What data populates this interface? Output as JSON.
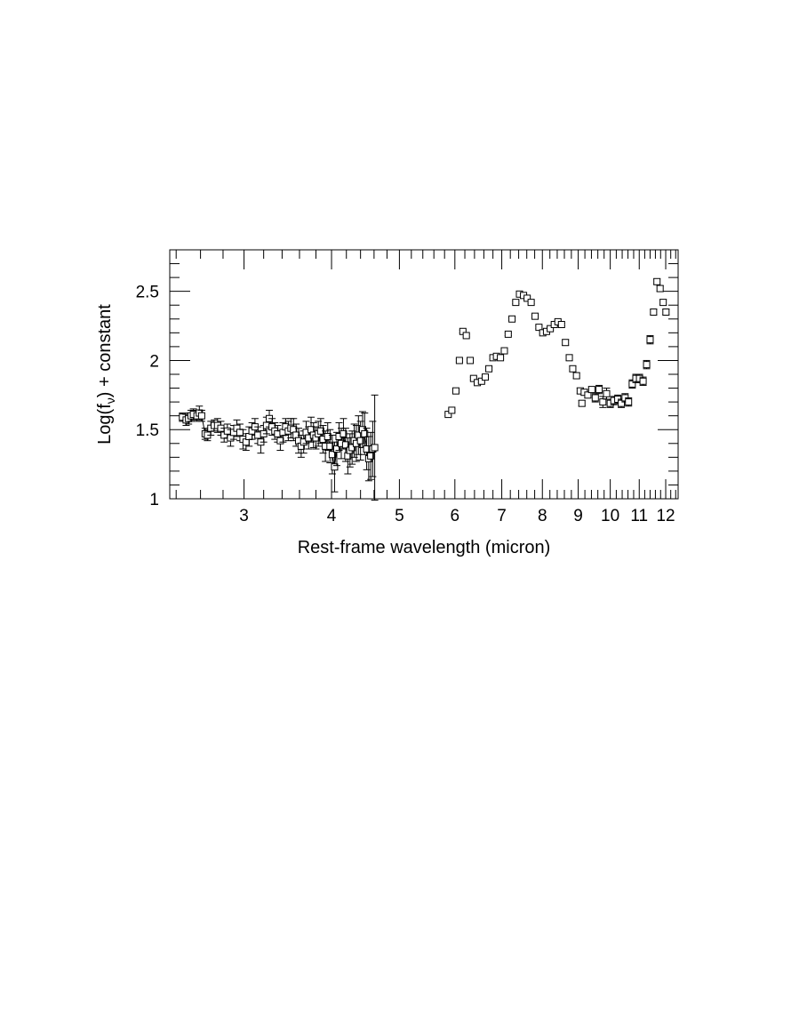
{
  "chart_data": {
    "type": "scatter",
    "xlabel": "Rest-frame wavelength (micron)",
    "ylabel_parts": {
      "pre": "Log(f",
      "sub": "ν",
      "post": ")  +  constant"
    },
    "x_scale": "log",
    "xlim": [
      2.35,
      12.5
    ],
    "ylim": [
      1.0,
      2.8
    ],
    "x_ticks": [
      {
        "value": 3,
        "label": "3"
      },
      {
        "value": 4,
        "label": "4"
      },
      {
        "value": 5,
        "label": "5"
      },
      {
        "value": 6,
        "label": "6"
      },
      {
        "value": 7,
        "label": "7"
      },
      {
        "value": 8,
        "label": "8"
      },
      {
        "value": 9,
        "label": "9"
      },
      {
        "value": 10,
        "label": "10"
      },
      {
        "value": 11,
        "label": "11"
      },
      {
        "value": 12,
        "label": "12"
      }
    ],
    "y_ticks": [
      {
        "value": 1,
        "label": "1"
      },
      {
        "value": 1.5,
        "label": "1.5"
      },
      {
        "value": 2,
        "label": "2"
      },
      {
        "value": 2.5,
        "label": "2.5"
      }
    ],
    "y_minor_step": 0.1,
    "grid": false,
    "marker": "open-square",
    "series": [
      {
        "connected": true,
        "points": [
          [
            2.45,
            1.59,
            0.03
          ],
          [
            2.48,
            1.57,
            0.04
          ],
          [
            2.5,
            1.58,
            0.04
          ],
          [
            2.52,
            1.6,
            0.04
          ],
          [
            2.54,
            1.61,
            0.04
          ],
          [
            2.57,
            1.6,
            0.04
          ],
          [
            2.59,
            1.62,
            0.05
          ],
          [
            2.61,
            1.6,
            0.04
          ],
          [
            2.64,
            1.47,
            0.04
          ],
          [
            2.66,
            1.46,
            0.04
          ],
          [
            2.69,
            1.51,
            0.05
          ],
          [
            2.72,
            1.53,
            0.04
          ],
          [
            2.75,
            1.53,
            0.05
          ],
          [
            2.78,
            1.51,
            0.05
          ],
          [
            2.81,
            1.46,
            0.05
          ],
          [
            2.84,
            1.49,
            0.05
          ],
          [
            2.87,
            1.44,
            0.06
          ],
          [
            2.9,
            1.48,
            0.05
          ],
          [
            2.93,
            1.51,
            0.06
          ],
          [
            2.96,
            1.48,
            0.06
          ],
          [
            2.99,
            1.43,
            0.07
          ],
          [
            3.02,
            1.41,
            0.06
          ],
          [
            3.05,
            1.45,
            0.07
          ],
          [
            3.08,
            1.49,
            0.06
          ],
          [
            3.11,
            1.52,
            0.06
          ],
          [
            3.14,
            1.46,
            0.06
          ],
          [
            3.17,
            1.41,
            0.08
          ],
          [
            3.2,
            1.47,
            0.06
          ],
          [
            3.23,
            1.53,
            0.06
          ],
          [
            3.26,
            1.58,
            0.06
          ],
          [
            3.29,
            1.52,
            0.06
          ],
          [
            3.32,
            1.49,
            0.06
          ],
          [
            3.35,
            1.47,
            0.06
          ],
          [
            3.38,
            1.42,
            0.07
          ],
          [
            3.41,
            1.48,
            0.07
          ],
          [
            3.44,
            1.52,
            0.06
          ],
          [
            3.47,
            1.49,
            0.07
          ],
          [
            3.5,
            1.51,
            0.07
          ],
          [
            3.53,
            1.5,
            0.08
          ],
          [
            3.56,
            1.46,
            0.08
          ],
          [
            3.59,
            1.42,
            0.09
          ],
          [
            3.62,
            1.38,
            0.08
          ],
          [
            3.65,
            1.41,
            0.08
          ],
          [
            3.68,
            1.48,
            0.08
          ],
          [
            3.71,
            1.44,
            0.08
          ],
          [
            3.74,
            1.5,
            0.09
          ],
          [
            3.77,
            1.46,
            0.09
          ],
          [
            3.8,
            1.44,
            0.08
          ],
          [
            3.83,
            1.47,
            0.09
          ],
          [
            3.86,
            1.49,
            0.09
          ],
          [
            3.89,
            1.43,
            0.1
          ],
          [
            3.92,
            1.38,
            0.11
          ],
          [
            3.95,
            1.45,
            0.1
          ],
          [
            3.98,
            1.38,
            0.12
          ],
          [
            4.01,
            1.32,
            0.14
          ],
          [
            4.04,
            1.23,
            0.18
          ],
          [
            4.07,
            1.36,
            0.12
          ],
          [
            4.1,
            1.45,
            0.1
          ],
          [
            4.13,
            1.4,
            0.11
          ],
          [
            4.16,
            1.47,
            0.11
          ],
          [
            4.19,
            1.39,
            0.12
          ],
          [
            4.22,
            1.31,
            0.13
          ],
          [
            4.25,
            1.35,
            0.12
          ],
          [
            4.28,
            1.37,
            0.12
          ],
          [
            4.31,
            1.42,
            0.12
          ],
          [
            4.34,
            1.4,
            0.13
          ],
          [
            4.37,
            1.46,
            0.14
          ],
          [
            4.4,
            1.42,
            0.14
          ],
          [
            4.43,
            1.5,
            0.13
          ],
          [
            4.46,
            1.47,
            0.15
          ],
          [
            4.49,
            1.36,
            0.15
          ],
          [
            4.52,
            1.29,
            0.16
          ],
          [
            4.55,
            1.31,
            0.17
          ],
          [
            4.58,
            1.36,
            0.2
          ],
          [
            4.61,
            1.37,
            0.38
          ]
        ]
      },
      {
        "connected": false,
        "points": [
          [
            5.87,
            1.61,
            0.01
          ],
          [
            5.94,
            1.64,
            0.01
          ],
          [
            6.02,
            1.78,
            0.01
          ],
          [
            6.09,
            2.0,
            0.01
          ],
          [
            6.16,
            2.21,
            0.01
          ],
          [
            6.23,
            2.18,
            0.01
          ],
          [
            6.31,
            2.0,
            0.01
          ],
          [
            6.38,
            1.87,
            0.01
          ],
          [
            6.46,
            1.84,
            0.01
          ],
          [
            6.55,
            1.85,
            0.01
          ],
          [
            6.63,
            1.88,
            0.01
          ],
          [
            6.71,
            1.94,
            0.01
          ],
          [
            6.8,
            2.02,
            0.01
          ],
          [
            6.88,
            2.03,
            0.01
          ],
          [
            6.97,
            2.02,
            0.01
          ],
          [
            7.06,
            2.07,
            0.01
          ],
          [
            7.15,
            2.19,
            0.01
          ],
          [
            7.24,
            2.3,
            0.01
          ],
          [
            7.33,
            2.42,
            0.01
          ],
          [
            7.42,
            2.48,
            0.01
          ],
          [
            7.52,
            2.47,
            0.01
          ],
          [
            7.61,
            2.45,
            0.01
          ],
          [
            7.71,
            2.42,
            0.01
          ],
          [
            7.81,
            2.32,
            0.01
          ],
          [
            7.91,
            2.24,
            0.01
          ],
          [
            8.01,
            2.2,
            0.01
          ],
          [
            8.11,
            2.21,
            0.01
          ],
          [
            8.21,
            2.23,
            0.01
          ],
          [
            8.32,
            2.26,
            0.01
          ],
          [
            8.42,
            2.28,
            0.01
          ],
          [
            8.52,
            2.26,
            0.01
          ],
          [
            8.63,
            2.13,
            0.02
          ],
          [
            8.74,
            2.02,
            0.02
          ],
          [
            8.84,
            1.94,
            0.02
          ],
          [
            8.95,
            1.89,
            0.02
          ],
          [
            9.06,
            1.78,
            0.02
          ],
          [
            9.11,
            1.69,
            0.02
          ],
          [
            9.18,
            1.77,
            0.02
          ],
          [
            9.29,
            1.75,
            0.02
          ],
          [
            9.41,
            1.79,
            0.02
          ],
          [
            9.52,
            1.73,
            0.03
          ],
          [
            9.64,
            1.79,
            0.03
          ],
          [
            9.76,
            1.7,
            0.04
          ],
          [
            9.88,
            1.76,
            0.04
          ],
          [
            10.0,
            1.69,
            0.03
          ],
          [
            10.12,
            1.71,
            0.03
          ],
          [
            10.25,
            1.72,
            0.03
          ],
          [
            10.37,
            1.69,
            0.03
          ],
          [
            10.5,
            1.73,
            0.03
          ],
          [
            10.62,
            1.7,
            0.03
          ],
          [
            10.75,
            1.83,
            0.03
          ],
          [
            10.88,
            1.87,
            0.03
          ],
          [
            11.01,
            1.87,
            0.03
          ],
          [
            11.14,
            1.85,
            0.03
          ],
          [
            11.27,
            1.97,
            0.03
          ],
          [
            11.4,
            2.15,
            0.03
          ],
          [
            11.53,
            2.35,
            0.02
          ],
          [
            11.66,
            2.57,
            0.02
          ],
          [
            11.78,
            2.52,
            0.02
          ],
          [
            11.9,
            2.42,
            0.02
          ],
          [
            12.01,
            2.35,
            0.02
          ]
        ]
      }
    ]
  }
}
